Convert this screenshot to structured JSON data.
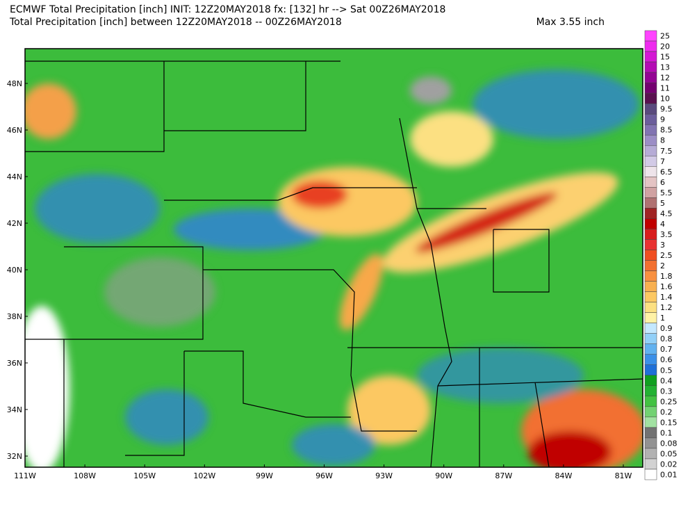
{
  "header": {
    "title_line1": "ECMWF Total Precipitation [inch] INIT: 12Z20MAY2018 fx: [132] hr --> Sat 00Z26MAY2018",
    "title_line2": "Total Precipitation [inch] between 12Z20MAY2018 -- 00Z26MAY2018",
    "max": "Max 3.55 inch"
  },
  "map": {
    "lat_labels": [
      "48N",
      "46N",
      "44N",
      "42N",
      "40N",
      "38N",
      "36N",
      "34N",
      "32N"
    ],
    "lon_labels": [
      "111W",
      "108W",
      "105W",
      "102W",
      "99W",
      "96W",
      "93W",
      "90W",
      "87W",
      "84W",
      "81W"
    ]
  },
  "colorbar": {
    "entries": [
      {
        "value": 25,
        "color": "#ff44ff"
      },
      {
        "value": 20,
        "color": "#ee2aee"
      },
      {
        "value": 15,
        "color": "#d418d4"
      },
      {
        "value": 13,
        "color": "#b40cb4"
      },
      {
        "value": 12,
        "color": "#940494"
      },
      {
        "value": 11,
        "color": "#740070"
      },
      {
        "value": 10,
        "color": "#5a1050"
      },
      {
        "value": 9.5,
        "color": "#5a4a7e"
      },
      {
        "value": 9,
        "color": "#6c5e9c"
      },
      {
        "value": 8.5,
        "color": "#8274b2"
      },
      {
        "value": 8,
        "color": "#9c8ec6"
      },
      {
        "value": 7.5,
        "color": "#b6acd6"
      },
      {
        "value": 7,
        "color": "#d2cae6"
      },
      {
        "value": 6.5,
        "color": "#eee4ea"
      },
      {
        "value": 6,
        "color": "#e4c4c4"
      },
      {
        "value": 5.5,
        "color": "#d0a2a2"
      },
      {
        "value": 5,
        "color": "#b07272"
      },
      {
        "value": 4.5,
        "color": "#a02424"
      },
      {
        "value": 4,
        "color": "#c00000"
      },
      {
        "value": 3.5,
        "color": "#d81c1c"
      },
      {
        "value": 3,
        "color": "#e83232"
      },
      {
        "value": 2.5,
        "color": "#f04e20"
      },
      {
        "value": 2,
        "color": "#f27030"
      },
      {
        "value": 1.8,
        "color": "#f89040"
      },
      {
        "value": 1.6,
        "color": "#f8b050"
      },
      {
        "value": 1.4,
        "color": "#fcc862"
      },
      {
        "value": 1.2,
        "color": "#fce082"
      },
      {
        "value": 1,
        "color": "#fff2a6"
      },
      {
        "value": 0.9,
        "color": "#c4e8ff"
      },
      {
        "value": 0.8,
        "color": "#92d0f8"
      },
      {
        "value": 0.7,
        "color": "#62b2f0"
      },
      {
        "value": 0.6,
        "color": "#3c90e8"
      },
      {
        "value": 0.5,
        "color": "#2070d8"
      },
      {
        "value": 0.4,
        "color": "#10a020"
      },
      {
        "value": 0.3,
        "color": "#22b232"
      },
      {
        "value": 0.25,
        "color": "#42c242"
      },
      {
        "value": 0.2,
        "color": "#72d272"
      },
      {
        "value": 0.15,
        "color": "#a2e2a2"
      },
      {
        "value": 0.1,
        "color": "#727272"
      },
      {
        "value": 0.08,
        "color": "#929292"
      },
      {
        "value": 0.05,
        "color": "#b2b2b2"
      },
      {
        "value": 0.02,
        "color": "#d2d2d2"
      },
      {
        "value": 0.01,
        "color": "#ffffff"
      }
    ]
  }
}
